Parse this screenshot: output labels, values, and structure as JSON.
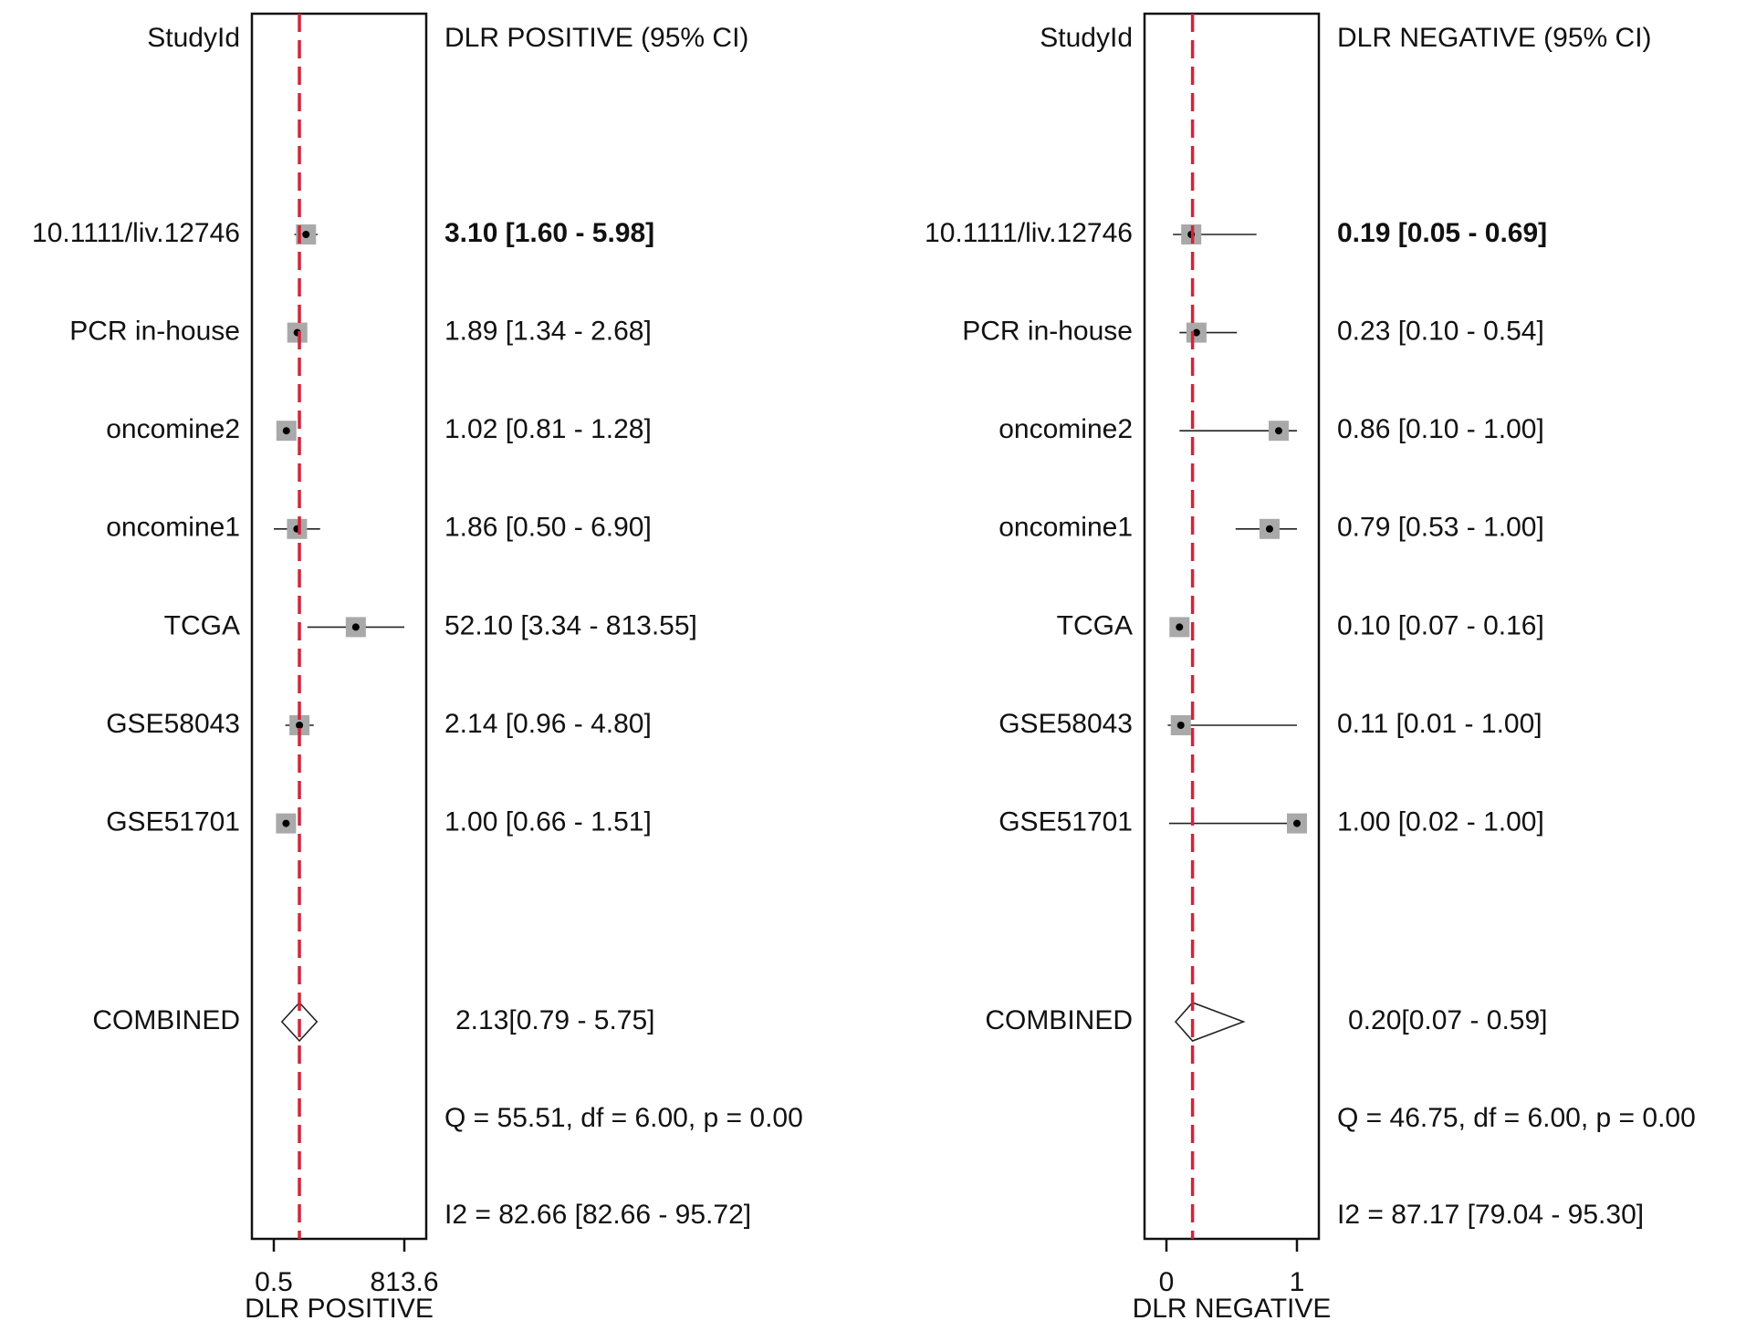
{
  "chart_data": [
    {
      "type": "forest",
      "study_header": "StudyId",
      "estimate_header": "DLR POSITIVE (95% CI)",
      "xlabel": "DLR POSITIVE",
      "log_x": true,
      "xlim": [
        0.5,
        813.6
      ],
      "xticks": [
        0.5,
        813.6
      ],
      "ref_line_color": "#d0263a",
      "box_color": "#a9a9a9",
      "categories": [
        "10.1111/liv.12746",
        "PCR in-house",
        "oncomine2",
        "oncomine1",
        "TCGA",
        "GSE58043",
        "GSE51701"
      ],
      "values": [
        3.1,
        1.89,
        1.02,
        1.86,
        52.1,
        2.14,
        1.0
      ],
      "ci_low": [
        1.6,
        1.34,
        0.81,
        0.5,
        3.34,
        0.96,
        0.66
      ],
      "ci_high": [
        5.98,
        2.68,
        1.28,
        6.9,
        813.55,
        4.8,
        1.51
      ],
      "value_labels": [
        "3.10 [1.60 - 5.98]",
        "1.89 [1.34 - 2.68]",
        "1.02 [0.81 - 1.28]",
        "1.86 [0.50 - 6.90]",
        "52.10 [3.34 - 813.55]",
        "2.14 [0.96 - 4.80]",
        "1.00 [0.66 - 1.51]"
      ],
      "combined": {
        "label": "COMBINED",
        "value": 2.13,
        "ci_low": 0.79,
        "ci_high": 5.75,
        "value_label": "2.13[0.79 - 5.75]"
      },
      "heterogeneity": "Q = 55.51, df = 6.00, p =  0.00",
      "i2": "I2 = 82.66 [82.66 - 95.72]"
    },
    {
      "type": "forest",
      "study_header": "StudyId",
      "estimate_header": "DLR NEGATIVE (95% CI)",
      "xlabel": "DLR NEGATIVE",
      "log_x": false,
      "xlim": [
        0,
        1
      ],
      "xticks": [
        0,
        1
      ],
      "ref_line_color": "#d0263a",
      "box_color": "#a9a9a9",
      "categories": [
        "10.1111/liv.12746",
        "PCR in-house",
        "oncomine2",
        "oncomine1",
        "TCGA",
        "GSE58043",
        "GSE51701"
      ],
      "values": [
        0.19,
        0.23,
        0.86,
        0.79,
        0.1,
        0.11,
        1.0
      ],
      "ci_low": [
        0.05,
        0.1,
        0.1,
        0.53,
        0.07,
        0.01,
        0.02
      ],
      "ci_high": [
        0.69,
        0.54,
        1.0,
        1.0,
        0.16,
        1.0,
        1.0
      ],
      "value_labels": [
        "0.19 [0.05 - 0.69]",
        "0.23 [0.10 - 0.54]",
        "0.86 [0.10 - 1.00]",
        "0.79 [0.53 - 1.00]",
        "0.10 [0.07 - 0.16]",
        "0.11 [0.01 - 1.00]",
        "1.00 [0.02 - 1.00]"
      ],
      "combined": {
        "label": "COMBINED",
        "value": 0.2,
        "ci_low": 0.07,
        "ci_high": 0.59,
        "value_label": "0.20[0.07 - 0.59]"
      },
      "heterogeneity": "Q = 46.75, df = 6.00, p = 0.00",
      "i2": "I2 = 87.17 [79.04 - 95.30]"
    }
  ]
}
